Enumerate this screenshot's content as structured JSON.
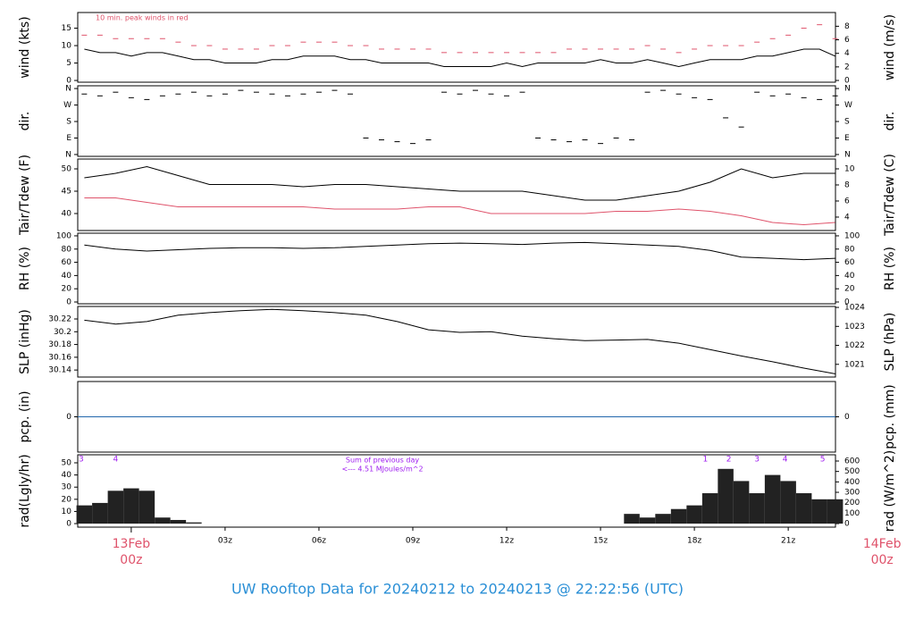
{
  "title": "UW Rooftop Data for 20240212  to  20240213 @ 22:22:56  (UTC)",
  "chart_data": [
    {
      "type": "line",
      "ylabel": "wind (kts)",
      "y2label": "wind (m/s)",
      "annotation": "10 min. peak winds in red",
      "xlim": [
        -1.71,
        22.51
      ],
      "ylim": [
        -0.5,
        19.5
      ],
      "yticks": [
        0,
        5,
        10,
        15
      ],
      "y2lim": [
        -0.26,
        10.03
      ],
      "y2ticks": [
        0,
        2,
        4,
        6,
        8
      ],
      "x": [
        -1.5,
        -1,
        -0.5,
        0,
        0.5,
        1,
        1.5,
        2,
        2.5,
        3,
        3.5,
        4,
        4.5,
        5,
        5.5,
        6,
        6.5,
        7,
        7.5,
        8,
        8.5,
        9,
        9.5,
        10,
        10.5,
        11,
        11.5,
        12,
        12.5,
        13,
        13.5,
        14,
        14.5,
        15,
        15.5,
        16,
        16.5,
        17,
        17.5,
        18,
        18.5,
        19,
        19.5,
        20,
        20.5,
        21,
        21.5,
        22,
        22.5
      ],
      "series": [
        {
          "color": "#000000",
          "marker": "line",
          "values": [
            9,
            8,
            8,
            7,
            8,
            8,
            7,
            6,
            6,
            5,
            5,
            5,
            6,
            6,
            7,
            7,
            7,
            6,
            6,
            5,
            5,
            5,
            5,
            4,
            4,
            4,
            4,
            5,
            4,
            5,
            5,
            5,
            5,
            6,
            5,
            5,
            6,
            5,
            4,
            5,
            6,
            6,
            6,
            7,
            7,
            8,
            9,
            9,
            7
          ]
        },
        {
          "color": "#df536b",
          "marker": "dash",
          "values": [
            13,
            13,
            12,
            12,
            12,
            12,
            11,
            10,
            10,
            9,
            9,
            9,
            10,
            10,
            11,
            11,
            11,
            10,
            10,
            9,
            9,
            9,
            9,
            8,
            8,
            8,
            8,
            8,
            8,
            8,
            8,
            9,
            9,
            9,
            9,
            9,
            10,
            9,
            8,
            9,
            10,
            10,
            10,
            11,
            12,
            13,
            15,
            16,
            12
          ]
        }
      ]
    },
    {
      "type": "scatter",
      "ylabel": "dir.",
      "y2label": "dir.",
      "xlim": [
        -1.71,
        22.51
      ],
      "ylim": [
        -10,
        375
      ],
      "yticks": [
        {
          "value": 360,
          "label": "N"
        },
        {
          "value": 270,
          "label": "W"
        },
        {
          "value": 180,
          "label": "S"
        },
        {
          "value": 90,
          "label": "E"
        },
        {
          "value": 0,
          "label": "N"
        }
      ],
      "y2lim": [
        -10,
        375
      ],
      "y2ticks": [
        {
          "value": 360,
          "label": "N"
        },
        {
          "value": 270,
          "label": "W"
        },
        {
          "value": 180,
          "label": "S"
        },
        {
          "value": 90,
          "label": "E"
        },
        {
          "value": 0,
          "label": "N"
        }
      ],
      "x": [
        -1.5,
        -1,
        -0.5,
        0,
        0.5,
        1,
        1.5,
        2,
        2.5,
        3,
        3.5,
        4,
        4.5,
        5,
        5.5,
        6,
        6.5,
        7,
        7.5,
        8,
        8.5,
        9,
        9.5,
        10,
        10.5,
        11,
        11.5,
        12,
        12.5,
        13,
        13.5,
        14,
        14.5,
        15,
        15.5,
        16,
        16.5,
        17,
        17.5,
        18,
        18.5,
        19,
        19.5,
        20,
        20.5,
        21,
        21.5,
        22,
        22.5
      ],
      "series": [
        {
          "color": "#000000",
          "marker": "dash",
          "values": [
            330,
            320,
            340,
            310,
            300,
            320,
            330,
            340,
            320,
            330,
            350,
            340,
            330,
            320,
            330,
            340,
            350,
            330,
            90,
            80,
            70,
            60,
            80,
            340,
            330,
            350,
            330,
            320,
            340,
            90,
            80,
            70,
            80,
            60,
            90,
            80,
            340,
            350,
            330,
            310,
            300,
            200,
            150,
            340,
            320,
            330,
            310,
            300,
            320
          ]
        }
      ]
    },
    {
      "type": "line",
      "ylabel": "Tair/Tdew (F)",
      "y2label": "Tair/Tdew (C)",
      "xlim": [
        -1.71,
        22.51
      ],
      "ylim": [
        36.2,
        52.2
      ],
      "yticks": [
        40,
        45,
        50
      ],
      "y2lim": [
        2.33,
        11.22
      ],
      "y2ticks": [
        4,
        6,
        8,
        10
      ],
      "x": [
        -1.5,
        -0.5,
        0.5,
        1.5,
        2.5,
        3.5,
        4.5,
        5.5,
        6.5,
        7.5,
        8.5,
        9.5,
        10.5,
        11.5,
        12.5,
        13.5,
        14.5,
        15.5,
        16.5,
        17.5,
        18.5,
        19.5,
        20.5,
        21.5,
        22.5
      ],
      "series": [
        {
          "color": "#000000",
          "marker": "line",
          "values": [
            48,
            49,
            50.5,
            48.5,
            46.5,
            46.5,
            46.5,
            46,
            46.5,
            46.5,
            46,
            45.5,
            45,
            45,
            45,
            44,
            43,
            43,
            44,
            45,
            47,
            50,
            48,
            49,
            49
          ]
        },
        {
          "color": "#df536b",
          "marker": "line",
          "values": [
            43.5,
            43.5,
            42.5,
            41.5,
            41.5,
            41.5,
            41.5,
            41.5,
            41,
            41,
            41,
            41.5,
            41.5,
            40,
            40,
            40,
            40,
            40.5,
            40.5,
            41,
            40.5,
            39.5,
            38,
            37.5,
            38
          ]
        }
      ]
    },
    {
      "type": "line",
      "ylabel": "RH (%)",
      "y2label": "RH (%)",
      "xlim": [
        -1.71,
        22.51
      ],
      "ylim": [
        -2.7,
        104
      ],
      "yticks": [
        0,
        20,
        40,
        60,
        80,
        100
      ],
      "y2lim": [
        -2.7,
        104
      ],
      "y2ticks": [
        0,
        20,
        40,
        60,
        80,
        100
      ],
      "x": [
        -1.5,
        -0.5,
        0.5,
        1.5,
        2.5,
        3.5,
        4.5,
        5.5,
        6.5,
        7.5,
        8.5,
        9.5,
        10.5,
        11.5,
        12.5,
        13.5,
        14.5,
        15.5,
        16.5,
        17.5,
        18.5,
        19.5,
        20.5,
        21.5,
        22.5
      ],
      "series": [
        {
          "color": "#000000",
          "marker": "line",
          "values": [
            86,
            80,
            77,
            79,
            81,
            82,
            82,
            81,
            82,
            84,
            86,
            88,
            89,
            88,
            87,
            89,
            90,
            88,
            86,
            84,
            78,
            68,
            66,
            64,
            66
          ]
        }
      ]
    },
    {
      "type": "line",
      "ylabel": "SLP (inHg)",
      "y2label": "SLP (hPa)",
      "xlim": [
        -1.71,
        22.51
      ],
      "ylim": [
        30.129,
        30.2396
      ],
      "yticks": [
        30.14,
        30.16,
        30.18,
        30.2,
        30.22
      ],
      "y2lim": [
        1020.33,
        1024.05
      ],
      "y2ticks": [
        1021,
        1022,
        1023,
        1024
      ],
      "x": [
        -1.5,
        -0.5,
        0.5,
        1.5,
        2.5,
        3.5,
        4.5,
        5.5,
        6.5,
        7.5,
        8.5,
        9.5,
        10.5,
        11.5,
        12.5,
        13.5,
        14.5,
        15.5,
        16.5,
        17.5,
        18.5,
        19.5,
        20.5,
        21.5,
        22.5
      ],
      "series": [
        {
          "color": "#000000",
          "marker": "line",
          "values": [
            30.218,
            30.212,
            30.216,
            30.226,
            30.23,
            30.233,
            30.235,
            30.233,
            30.23,
            30.226,
            30.216,
            30.203,
            30.199,
            30.2,
            30.193,
            30.189,
            30.186,
            30.187,
            30.188,
            30.182,
            30.172,
            30.162,
            30.153,
            30.143,
            30.134
          ]
        }
      ]
    },
    {
      "type": "line",
      "ylabel": "pcp. (in)",
      "y2label": "pcp. (mm)",
      "xlim": [
        -1.71,
        22.51
      ],
      "ylim": [
        -0.1,
        0.1
      ],
      "yticks": [
        0
      ],
      "y2lim": [
        -2.54,
        2.54
      ],
      "y2ticks": [
        0
      ],
      "x": [
        -1.71,
        22.51
      ],
      "series": [
        {
          "color": "#2166ac",
          "marker": "line",
          "values": [
            0,
            0
          ]
        }
      ]
    },
    {
      "type": "bar",
      "ylabel": "rad(Lgly/hr)",
      "y2label": "rad (W/m^2)",
      "annotations": [
        "Sum of previous day",
        "<--- 4.51 MJoules/m^2"
      ],
      "hour_marks": [
        {
          "x": -1.6,
          "text": "3"
        },
        {
          "x": -0.5,
          "text": "4"
        },
        {
          "x": 18.35,
          "text": "1"
        },
        {
          "x": 19.1,
          "text": "2"
        },
        {
          "x": 20.0,
          "text": "3"
        },
        {
          "x": 20.9,
          "text": "4"
        },
        {
          "x": 22.1,
          "text": "5"
        }
      ],
      "xlim": [
        -1.71,
        22.51
      ],
      "ylim": [
        -2.9,
        56.6
      ],
      "yticks": [
        0,
        10,
        20,
        30,
        40,
        50
      ],
      "y2lim": [
        -34,
        660
      ],
      "y2ticks": [
        0,
        100,
        200,
        300,
        400,
        500,
        600
      ],
      "xticks": [
        {
          "value": 3,
          "label": "03z"
        },
        {
          "value": 6,
          "label": "06z"
        },
        {
          "value": 9,
          "label": "09z"
        },
        {
          "value": 12,
          "label": "12z"
        },
        {
          "value": 15,
          "label": "15z"
        },
        {
          "value": 18,
          "label": "18z"
        },
        {
          "value": 21,
          "label": "21z"
        }
      ],
      "day_labels": [
        {
          "value": 0,
          "date": "13Feb",
          "hour": "00z"
        },
        {
          "value": 24,
          "date": "14Feb",
          "hour": "00z"
        }
      ],
      "x": [
        -1.5,
        -1,
        -0.5,
        0,
        0.5,
        1,
        1.5,
        2,
        2.5,
        3,
        3.5,
        4,
        4.5,
        5,
        5.5,
        6,
        6.5,
        7,
        7.5,
        8,
        8.5,
        9,
        9.5,
        10,
        10.5,
        11,
        11.5,
        12,
        12.5,
        13,
        13.5,
        14,
        14.5,
        15,
        15.5,
        16,
        16.5,
        17,
        17.5,
        18,
        18.5,
        19,
        19.5,
        20,
        20.5,
        21,
        21.5,
        22,
        22.5
      ],
      "series": [
        {
          "color": "#222222",
          "values": [
            15,
            17,
            27,
            29,
            27,
            5,
            3,
            1,
            0,
            0,
            0,
            0,
            0,
            0,
            0,
            0,
            0,
            0,
            0,
            0,
            0,
            0,
            0,
            0,
            0,
            0,
            0,
            0,
            0,
            0,
            0,
            0,
            0,
            0,
            0,
            8,
            5,
            8,
            12,
            15,
            25,
            45,
            35,
            25,
            40,
            35,
            25,
            20,
            20
          ]
        }
      ]
    }
  ]
}
